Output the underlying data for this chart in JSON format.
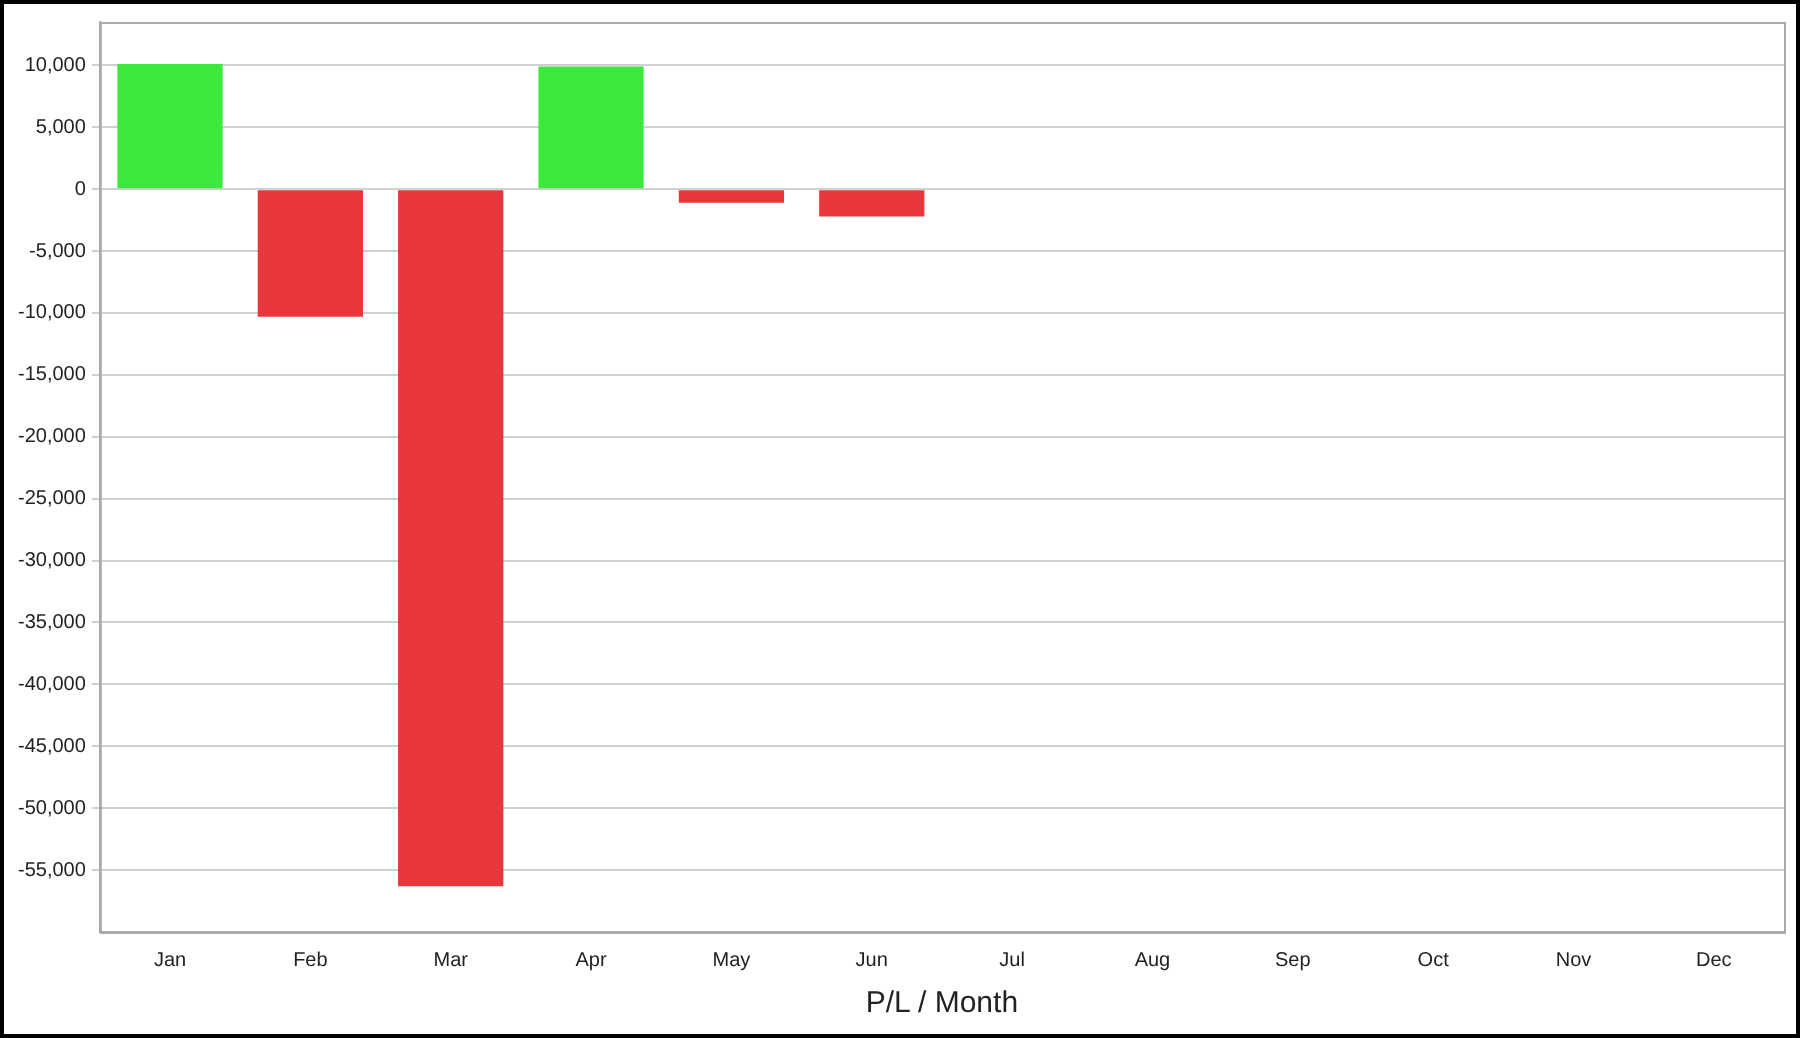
{
  "chart_data": {
    "type": "bar",
    "xlabel": "P/L / Month",
    "categories": [
      "Jan",
      "Feb",
      "Mar",
      "Apr",
      "May",
      "Jun",
      "Jul",
      "Aug",
      "Sep",
      "Oct",
      "Nov",
      "Dec"
    ],
    "values": [
      10100,
      -10300,
      -56300,
      9900,
      -1100,
      -2200,
      null,
      null,
      null,
      null,
      null,
      null
    ],
    "colors": [
      "#3de83d",
      "#e8363b",
      "#e8363b",
      "#3de83d",
      "#e8363b",
      "#e8363b",
      "#e8363b",
      "#e8363b",
      "#e8363b",
      "#e8363b",
      "#e8363b",
      "#e8363b"
    ],
    "ylim": [
      -60000,
      13500
    ],
    "yticks": [
      {
        "value": 10000,
        "label": "10,000"
      },
      {
        "value": 5000,
        "label": "5,000"
      },
      {
        "value": 0,
        "label": "0"
      },
      {
        "value": -5000,
        "label": "-5,000"
      },
      {
        "value": -10000,
        "label": "-10,000"
      },
      {
        "value": -15000,
        "label": "-15,000"
      },
      {
        "value": -20000,
        "label": "-20,000"
      },
      {
        "value": -25000,
        "label": "-25,000"
      },
      {
        "value": -30000,
        "label": "-30,000"
      },
      {
        "value": -35000,
        "label": "-35,000"
      },
      {
        "value": -40000,
        "label": "-40,000"
      },
      {
        "value": -45000,
        "label": "-45,000"
      },
      {
        "value": -50000,
        "label": "-50,000"
      },
      {
        "value": -55000,
        "label": "-55,000"
      }
    ],
    "grid": "y",
    "legend": false
  }
}
